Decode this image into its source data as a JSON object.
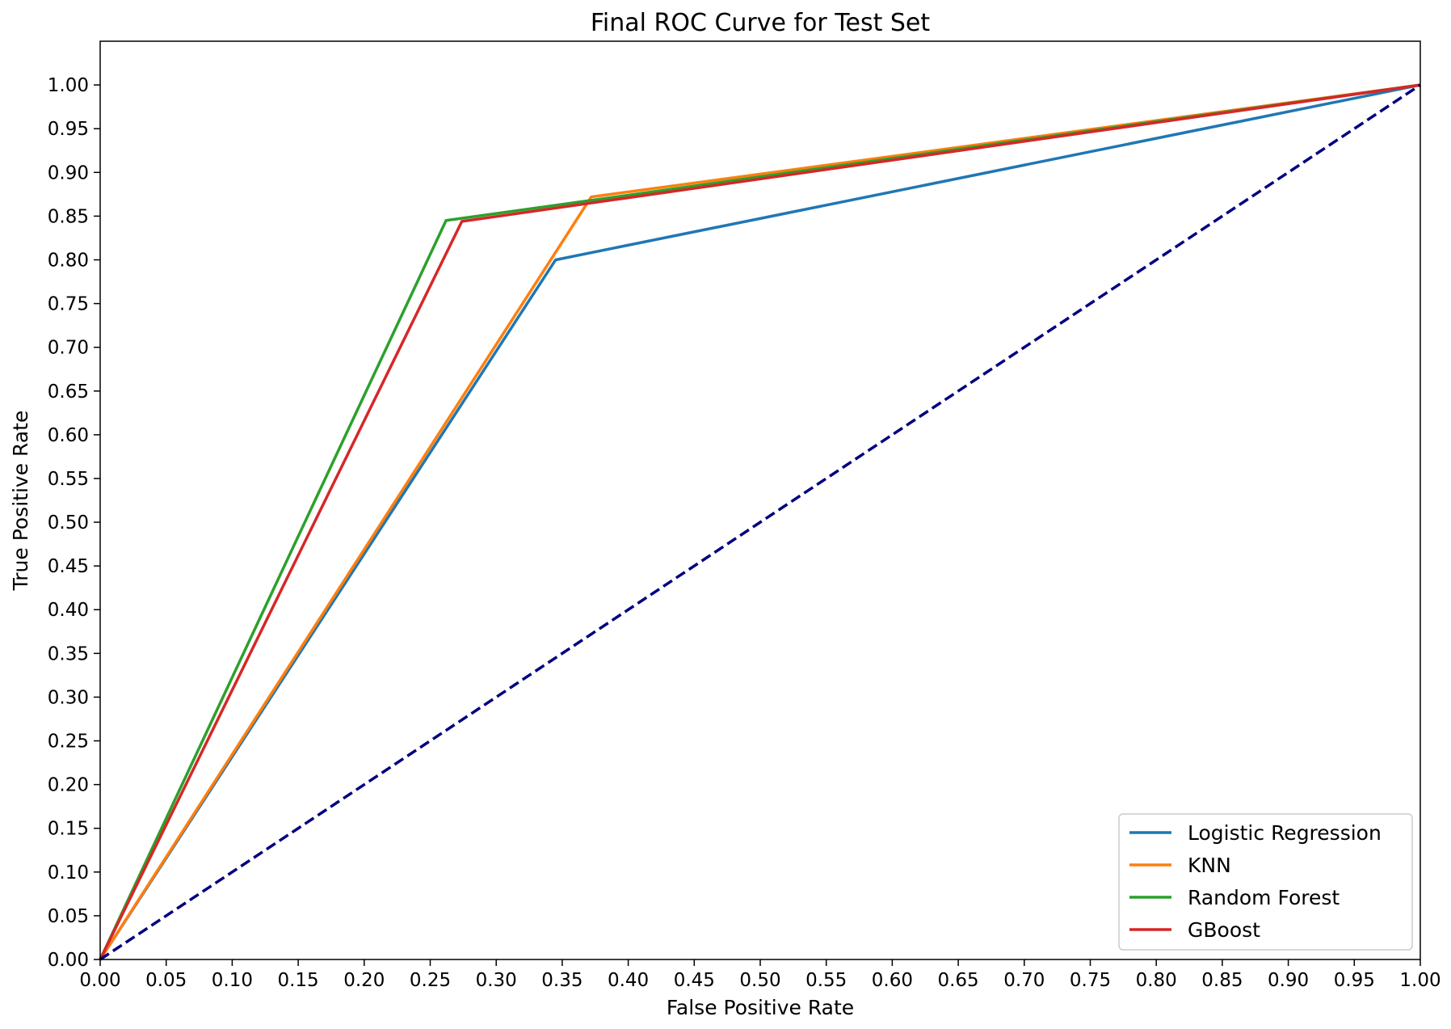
{
  "chart_data": {
    "type": "line",
    "title": "Final ROC Curve for Test Set",
    "xlabel": "False Positive Rate",
    "ylabel": "True Positive Rate",
    "xlim": [
      0,
      1
    ],
    "ylim": [
      0,
      1.05
    ],
    "xticks": [
      "0.00",
      "0.05",
      "0.10",
      "0.15",
      "0.20",
      "0.25",
      "0.30",
      "0.35",
      "0.40",
      "0.45",
      "0.50",
      "0.55",
      "0.60",
      "0.65",
      "0.70",
      "0.75",
      "0.80",
      "0.85",
      "0.90",
      "0.95",
      "1.00"
    ],
    "yticks": [
      "0.00",
      "0.05",
      "0.10",
      "0.15",
      "0.20",
      "0.25",
      "0.30",
      "0.35",
      "0.40",
      "0.45",
      "0.50",
      "0.55",
      "0.60",
      "0.65",
      "0.70",
      "0.75",
      "0.80",
      "0.85",
      "0.90",
      "0.95",
      "1.00"
    ],
    "grid": false,
    "legend_position": "bottom-right",
    "series": [
      {
        "name": "Logistic Regression",
        "color": "#1f77b4",
        "x": [
          0,
          0.345,
          1
        ],
        "y": [
          0,
          0.8,
          1
        ]
      },
      {
        "name": "KNN",
        "color": "#ff7f0e",
        "x": [
          0,
          0.372,
          1
        ],
        "y": [
          0,
          0.872,
          1
        ]
      },
      {
        "name": "Random Forest",
        "color": "#2ca02c",
        "x": [
          0,
          0.262,
          1
        ],
        "y": [
          0,
          0.845,
          1
        ]
      },
      {
        "name": "GBoost",
        "color": "#d62728",
        "x": [
          0,
          0.274,
          1
        ],
        "y": [
          0,
          0.844,
          1
        ]
      }
    ],
    "reference_line": {
      "color": "#000080",
      "style": "dashed",
      "x": [
        0,
        1
      ],
      "y": [
        0,
        1
      ]
    }
  }
}
